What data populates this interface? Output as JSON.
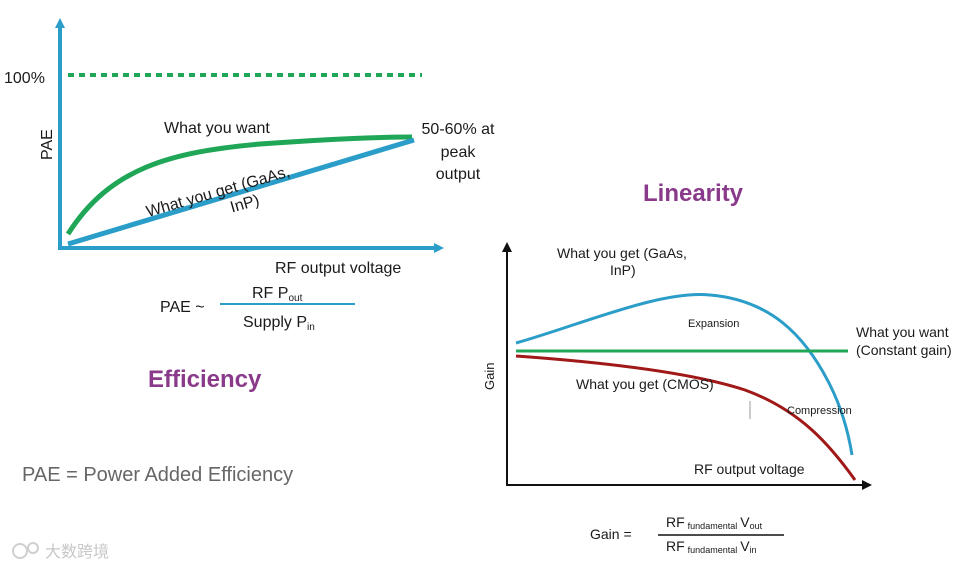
{
  "colors": {
    "axis": "#2a9dc8",
    "want_green": "#1fa657",
    "get_blue": "#2a9dc8",
    "cmos_red": "#a01818",
    "heading_purple": "#8a3a8a",
    "formula_line": "#2a9dc8"
  },
  "efficiency": {
    "heading": "Efficiency",
    "y_axis_label": "PAE",
    "x_axis_label": "RF output voltage",
    "hundred_percent": "100%",
    "curve_want_label": "What you want",
    "curve_get_label_line1": "What you get (GaAs,",
    "curve_get_label_line2": "InP)",
    "peak_note_line1": "50-60% at",
    "peak_note_line2": "peak",
    "peak_note_line3": "output",
    "formula_lhs": "PAE ~",
    "formula_num_main": "RF P",
    "formula_num_sub": "out",
    "formula_den_main": "Supply P",
    "formula_den_sub": "in",
    "footnote": "PAE = Power Added Efficiency"
  },
  "linearity": {
    "heading": "Linearity",
    "y_axis_label": "Gain",
    "x_axis_label": "RF output voltage",
    "gaas_label_line1": "What you get (GaAs,",
    "gaas_label_line2": "InP)",
    "expansion_label": "Expansion",
    "want_label_line1": "What you want",
    "want_label_line2": "(Constant gain)",
    "cmos_label": "What you get (CMOS)",
    "compression_label": "Compression",
    "formula_lhs": "Gain =",
    "formula_num_main": "RF",
    "formula_num_sub": "fundamental",
    "formula_num_v": "V",
    "formula_num_vsub": "out",
    "formula_den_main": "RF",
    "formula_den_sub": "fundamental",
    "formula_den_v": "V",
    "formula_den_vsub": "in"
  },
  "watermark": "大数跨境"
}
